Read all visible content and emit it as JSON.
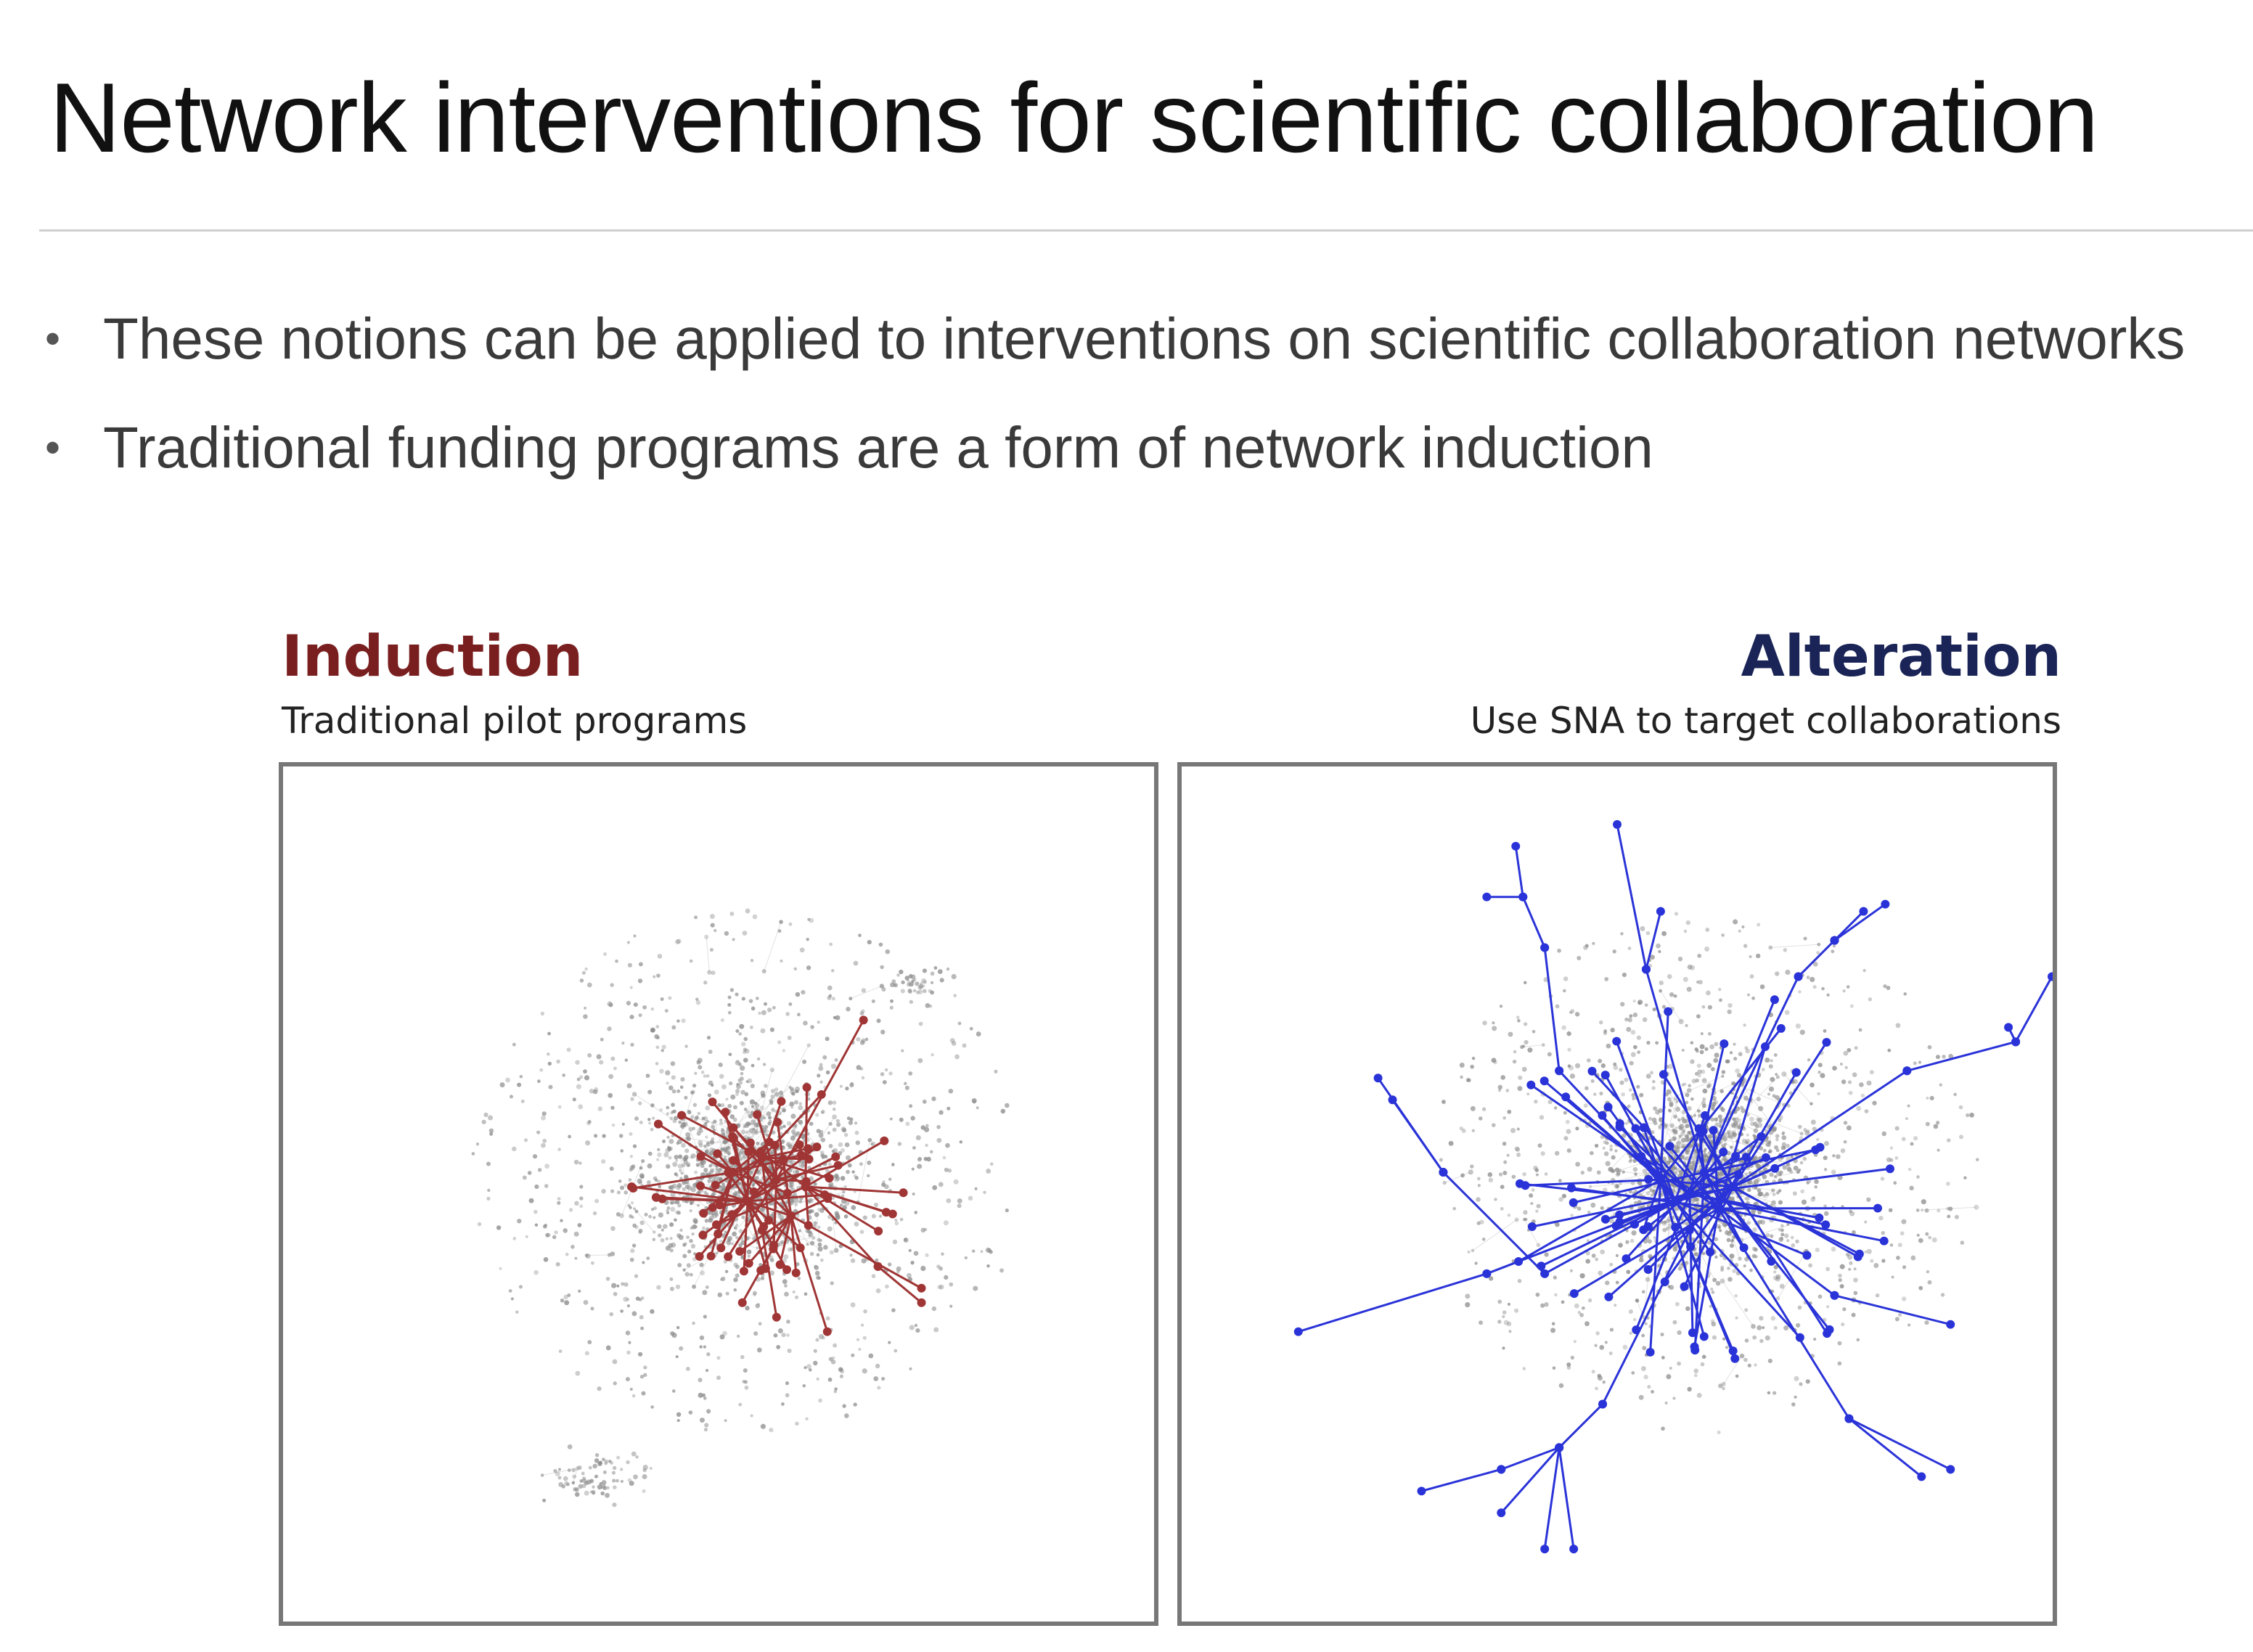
{
  "slide": {
    "title": "Network interventions for scientific collaboration",
    "bullets": [
      "These notions can be applied to interventions on scientific collaboration networks",
      "Traditional funding programs are a form of network induction"
    ]
  },
  "panels": {
    "left": {
      "title": "Induction",
      "subtitle": "Traditional pilot programs",
      "color": "#a03535",
      "figure": "network-graph-induction"
    },
    "right": {
      "title": "Alteration",
      "subtitle": "Use SNA to target collaborations",
      "color": "#2a33d8",
      "figure": "network-graph-alteration"
    }
  },
  "colors": {
    "node_gray": "#8c8c8c",
    "edge_gray": "#c8c8c8",
    "frame": "#777777"
  }
}
